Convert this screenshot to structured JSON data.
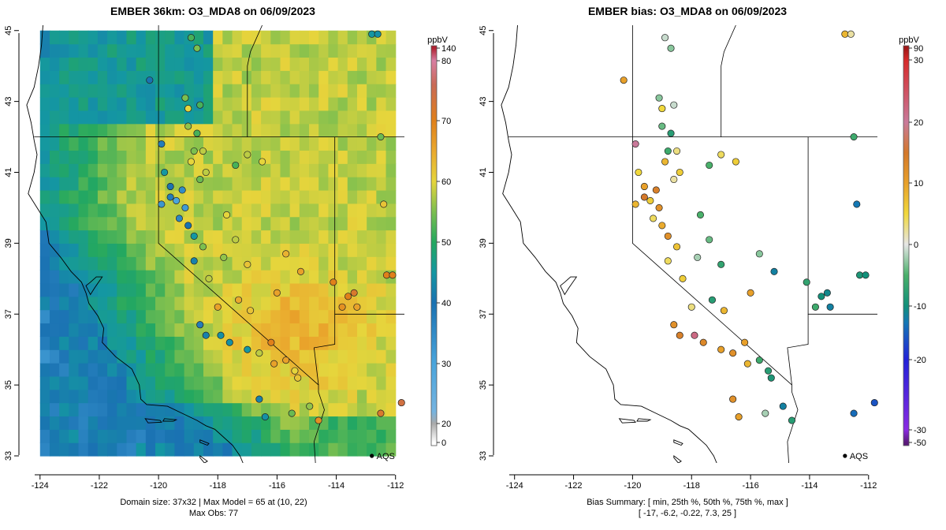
{
  "left_panel": {
    "title": "EMBER 36km: O3_MDA8 on 06/09/2023",
    "footer_line1": "Domain size: 37x32 | Max Model = 65 at (10, 22)",
    "footer_line2": "Max Obs: 77",
    "colorbar": {
      "unit": "ppbV",
      "tick_labels": [
        "0",
        "20",
        "30",
        "40",
        "50",
        "60",
        "70",
        "80",
        "140"
      ],
      "stops": [
        {
          "value": 0,
          "color": "#ffffff"
        },
        {
          "value": 20,
          "color": "#aaaaaa"
        },
        {
          "value": 22,
          "color": "#76b4e0"
        },
        {
          "value": 30,
          "color": "#4aa5dc"
        },
        {
          "value": 40,
          "color": "#1a72b2"
        },
        {
          "value": 45,
          "color": "#1497a2"
        },
        {
          "value": 50,
          "color": "#24a85f"
        },
        {
          "value": 55,
          "color": "#7cbf4f"
        },
        {
          "value": 60,
          "color": "#e6d53c"
        },
        {
          "value": 65,
          "color": "#eaa92e"
        },
        {
          "value": 70,
          "color": "#e0801a"
        },
        {
          "value": 76,
          "color": "#c96a56"
        },
        {
          "value": 80,
          "color": "#d87ea2"
        },
        {
          "value": 140,
          "color": "#b02232"
        }
      ]
    },
    "x_ticks": [
      "-124",
      "-122",
      "-120",
      "-118",
      "-116",
      "-114",
      "-112"
    ],
    "y_ticks": [
      "33",
      "35",
      "37",
      "39",
      "41",
      "43",
      "45"
    ],
    "site_label": "AQS"
  },
  "right_panel": {
    "title": "EMBER bias: O3_MDA8 on 06/09/2023",
    "footer_line1": "Bias Summary: [ min, 25th %, 50th %, 75th %, max ]",
    "footer_line2": "[ -17,   -6.2,   -0.22,   7.3,   25 ]",
    "colorbar": {
      "unit": "ppbV",
      "tick_labels": [
        "-50",
        "-30",
        "-20",
        "-10",
        "0",
        "10",
        "20",
        "30",
        "90"
      ],
      "stops": [
        {
          "value": -50,
          "color": "#5a1a7a"
        },
        {
          "value": -30,
          "color": "#8a2be2"
        },
        {
          "value": -20,
          "color": "#2222d8"
        },
        {
          "value": -13,
          "color": "#1478b4"
        },
        {
          "value": -10,
          "color": "#12907a"
        },
        {
          "value": -5,
          "color": "#49b06a"
        },
        {
          "value": 0,
          "color": "#e6e6e6"
        },
        {
          "value": 5,
          "color": "#f0d83c"
        },
        {
          "value": 10,
          "color": "#e8a02a"
        },
        {
          "value": 15,
          "color": "#d4782a"
        },
        {
          "value": 20,
          "color": "#c97a9a"
        },
        {
          "value": 30,
          "color": "#d62a2a"
        },
        {
          "value": 90,
          "color": "#a01818"
        }
      ]
    },
    "x_ticks": [
      "-124",
      "-122",
      "-120",
      "-118",
      "-116",
      "-114",
      "-112"
    ],
    "y_ticks": [
      "33",
      "35",
      "37",
      "39",
      "41",
      "43",
      "45"
    ],
    "site_label": "AQS"
  },
  "map": {
    "lon_range": [
      -124.5,
      -111.7
    ],
    "lat_range": [
      32.8,
      45.15
    ],
    "model_grid_extent": {
      "lon": [
        -124.0,
        -112.0
      ],
      "lat": [
        33.0,
        45.0
      ]
    }
  },
  "observations": [
    {
      "lon": -120.3,
      "lat": 43.6,
      "obs": 40,
      "bias": 10
    },
    {
      "lon": -119.9,
      "lat": 41.8,
      "obs": 38,
      "bias": 20
    },
    {
      "lon": -119.1,
      "lat": 43.1,
      "obs": 55,
      "bias": -3
    },
    {
      "lon": -119.0,
      "lat": 42.8,
      "obs": 60,
      "bias": 5
    },
    {
      "lon": -118.6,
      "lat": 42.9,
      "obs": 52,
      "bias": -1
    },
    {
      "lon": -119.0,
      "lat": 42.3,
      "obs": 56,
      "bias": -4
    },
    {
      "lon": -118.8,
      "lat": 41.6,
      "obs": 55,
      "bias": -6
    },
    {
      "lon": -118.5,
      "lat": 41.6,
      "obs": 58,
      "bias": 3
    },
    {
      "lon": -118.7,
      "lat": 42.1,
      "obs": 52,
      "bias": -8
    },
    {
      "lon": -118.9,
      "lat": 41.3,
      "obs": 60,
      "bias": 8
    },
    {
      "lon": -118.4,
      "lat": 41.0,
      "obs": 58,
      "bias": 6
    },
    {
      "lon": -118.6,
      "lat": 40.8,
      "obs": 54,
      "bias": 2
    },
    {
      "lon": -119.8,
      "lat": 41.0,
      "obs": 45,
      "bias": 5
    },
    {
      "lon": -119.6,
      "lat": 40.6,
      "obs": 40,
      "bias": 10
    },
    {
      "lon": -119.2,
      "lat": 40.5,
      "obs": 35,
      "bias": 14
    },
    {
      "lon": -119.6,
      "lat": 40.3,
      "obs": 38,
      "bias": 15
    },
    {
      "lon": -119.9,
      "lat": 40.1,
      "obs": 33,
      "bias": 8
    },
    {
      "lon": -119.4,
      "lat": 40.2,
      "obs": 30,
      "bias": 6
    },
    {
      "lon": -119.1,
      "lat": 40.0,
      "obs": 32,
      "bias": 12
    },
    {
      "lon": -119.3,
      "lat": 39.7,
      "obs": 36,
      "bias": 4
    },
    {
      "lon": -119.0,
      "lat": 39.5,
      "obs": 40,
      "bias": 9
    },
    {
      "lon": -118.8,
      "lat": 39.2,
      "obs": 45,
      "bias": 12
    },
    {
      "lon": -118.5,
      "lat": 38.9,
      "obs": 55,
      "bias": 7
    },
    {
      "lon": -118.8,
      "lat": 38.5,
      "obs": 42,
      "bias": 4
    },
    {
      "lon": -118.3,
      "lat": 38.0,
      "obs": 58,
      "bias": 6
    },
    {
      "lon": -117.8,
      "lat": 38.6,
      "obs": 56,
      "bias": -2
    },
    {
      "lon": -117.7,
      "lat": 39.8,
      "obs": 60,
      "bias": -5
    },
    {
      "lon": -117.4,
      "lat": 39.1,
      "obs": 58,
      "bias": -4
    },
    {
      "lon": -117.0,
      "lat": 38.4,
      "obs": 62,
      "bias": -7
    },
    {
      "lon": -117.3,
      "lat": 37.4,
      "obs": 65,
      "bias": -8
    },
    {
      "lon": -116.9,
      "lat": 37.1,
      "obs": 62,
      "bias": 8
    },
    {
      "lon": -116.0,
      "lat": 37.6,
      "obs": 66,
      "bias": 10
    },
    {
      "lon": -115.7,
      "lat": 38.7,
      "obs": 64,
      "bias": -3
    },
    {
      "lon": -115.2,
      "lat": 38.2,
      "obs": 66,
      "bias": -12
    },
    {
      "lon": -118.0,
      "lat": 37.2,
      "obs": 66,
      "bias": 3
    },
    {
      "lon": -118.6,
      "lat": 36.7,
      "obs": 38,
      "bias": 12
    },
    {
      "lon": -118.4,
      "lat": 36.4,
      "obs": 42,
      "bias": 14
    },
    {
      "lon": -117.9,
      "lat": 36.4,
      "obs": 44,
      "bias": 22
    },
    {
      "lon": -117.6,
      "lat": 36.2,
      "obs": 44,
      "bias": 13
    },
    {
      "lon": -117.0,
      "lat": 36.0,
      "obs": 45,
      "bias": 10
    },
    {
      "lon": -116.6,
      "lat": 35.9,
      "obs": 58,
      "bias": 12
    },
    {
      "lon": -116.1,
      "lat": 35.6,
      "obs": 66,
      "bias": 8
    },
    {
      "lon": -116.2,
      "lat": 36.2,
      "obs": 70,
      "bias": 10
    },
    {
      "lon": -115.7,
      "lat": 35.7,
      "obs": 66,
      "bias": -6
    },
    {
      "lon": -115.4,
      "lat": 35.4,
      "obs": 60,
      "bias": -8
    },
    {
      "lon": -115.3,
      "lat": 35.2,
      "obs": 62,
      "bias": -9
    },
    {
      "lon": -116.6,
      "lat": 34.6,
      "obs": 42,
      "bias": 12
    },
    {
      "lon": -116.4,
      "lat": 34.1,
      "obs": 44,
      "bias": 10
    },
    {
      "lon": -115.5,
      "lat": 34.2,
      "obs": 54,
      "bias": -2
    },
    {
      "lon": -114.9,
      "lat": 34.4,
      "obs": 56,
      "bias": -12
    },
    {
      "lon": -114.6,
      "lat": 34.0,
      "obs": 68,
      "bias": -8
    },
    {
      "lon": -113.6,
      "lat": 37.5,
      "obs": 70,
      "bias": -10
    },
    {
      "lon": -113.4,
      "lat": 37.6,
      "obs": 72,
      "bias": -11
    },
    {
      "lon": -113.8,
      "lat": 37.2,
      "obs": 68,
      "bias": -6
    },
    {
      "lon": -113.3,
      "lat": 37.2,
      "obs": 66,
      "bias": -12
    },
    {
      "lon": -114.1,
      "lat": 37.9,
      "obs": 70,
      "bias": -7
    },
    {
      "lon": -112.3,
      "lat": 38.1,
      "obs": 70,
      "bias": -9
    },
    {
      "lon": -112.1,
      "lat": 38.1,
      "obs": 70,
      "bias": -10
    },
    {
      "lon": -112.4,
      "lat": 40.1,
      "obs": 62,
      "bias": -13
    },
    {
      "lon": -112.5,
      "lat": 42.0,
      "obs": 54,
      "bias": -6
    },
    {
      "lon": -112.5,
      "lat": 34.2,
      "obs": 72,
      "bias": -14
    },
    {
      "lon": -111.8,
      "lat": 34.5,
      "obs": 74,
      "bias": -16
    },
    {
      "lon": -112.8,
      "lat": 44.9,
      "obs": 45,
      "bias": 8
    },
    {
      "lon": -112.6,
      "lat": 44.9,
      "obs": 44,
      "bias": 2
    },
    {
      "lon": -117.0,
      "lat": 41.5,
      "obs": 58,
      "bias": 4
    },
    {
      "lon": -116.5,
      "lat": 41.3,
      "obs": 60,
      "bias": 6
    },
    {
      "lon": -117.4,
      "lat": 41.2,
      "obs": 52,
      "bias": -5
    },
    {
      "lon": -118.7,
      "lat": 44.5,
      "obs": 55,
      "bias": -3
    },
    {
      "lon": -118.9,
      "lat": 44.8,
      "obs": 52,
      "bias": -1
    }
  ]
}
